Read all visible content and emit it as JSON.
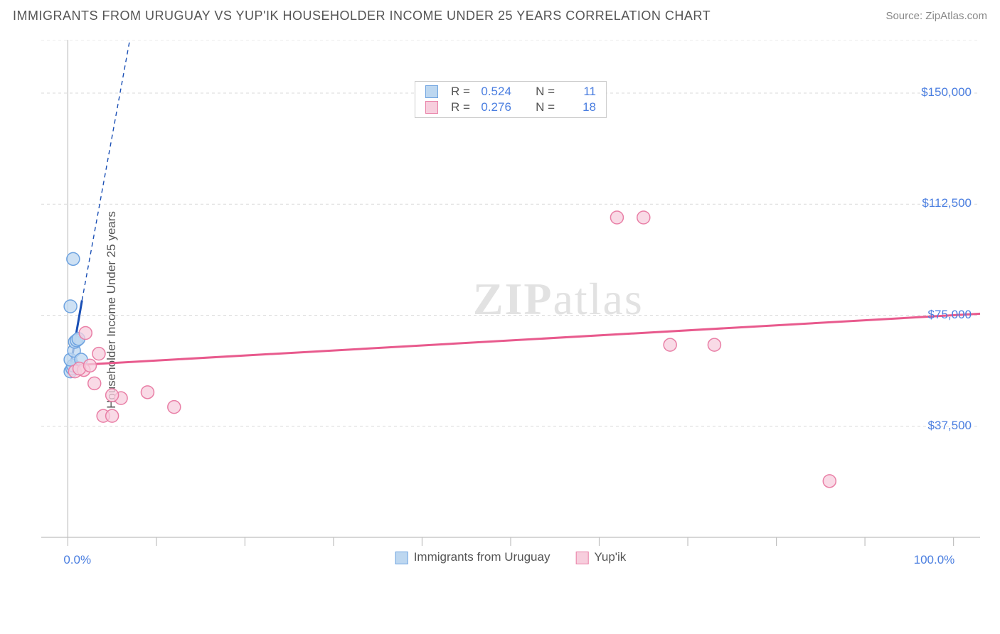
{
  "header": {
    "title": "IMMIGRANTS FROM URUGUAY VS YUP'IK HOUSEHOLDER INCOME UNDER 25 YEARS CORRELATION CHART",
    "source": "Source: ZipAtlas.com"
  },
  "ylabel": "Householder Income Under 25 years",
  "watermark_a": "ZIP",
  "watermark_b": "atlas",
  "chart": {
    "type": "scatter",
    "background_color": "#ffffff",
    "grid_color": "#d9d9d9",
    "axis_color": "#bfbfbf",
    "tick_color": "#bfbfbf",
    "xlim": [
      -3,
      103
    ],
    "ylim": [
      0,
      168000
    ],
    "x_ticks_pct": [
      0,
      10,
      20,
      30,
      40,
      50,
      60,
      70,
      80,
      90,
      100
    ],
    "y_gridlines": [
      37500,
      75000,
      112500,
      150000,
      168000
    ],
    "y_labels": [
      {
        "v": 150000,
        "t": "$150,000"
      },
      {
        "v": 112500,
        "t": "$112,500"
      },
      {
        "v": 75000,
        "t": "$75,000"
      },
      {
        "v": 37500,
        "t": "$37,500"
      }
    ],
    "x_labels": [
      {
        "v": 0,
        "t": "0.0%"
      },
      {
        "v": 100,
        "t": "100.0%"
      }
    ],
    "marker_radius": 9,
    "marker_stroke_width": 1.5,
    "line_width": 3,
    "dash_pattern": "6,5",
    "series": [
      {
        "name": "Immigrants from Uruguay",
        "fill": "#bdd7f0",
        "stroke": "#6ea3e0",
        "line_color": "#1a4fb5",
        "r_value": "0.524",
        "n_value": "11",
        "points": [
          {
            "x": 0.3,
            "y": 56000
          },
          {
            "x": 0.5,
            "y": 57000
          },
          {
            "x": 0.6,
            "y": 58000
          },
          {
            "x": 0.3,
            "y": 60000
          },
          {
            "x": 0.7,
            "y": 63000
          },
          {
            "x": 0.8,
            "y": 66000
          },
          {
            "x": 1.0,
            "y": 66500
          },
          {
            "x": 1.2,
            "y": 67000
          },
          {
            "x": 0.3,
            "y": 78000
          },
          {
            "x": 0.6,
            "y": 94000
          },
          {
            "x": 1.5,
            "y": 60000
          }
        ],
        "trend_solid": {
          "x1": 0.2,
          "y1": 56000,
          "x2": 1.6,
          "y2": 80000
        },
        "trend_dash": {
          "x1": 1.6,
          "y1": 80000,
          "x2": 7.0,
          "y2": 168000
        }
      },
      {
        "name": "Yup'ik",
        "fill": "#f7cedd",
        "stroke": "#e97fa6",
        "line_color": "#e85a8d",
        "r_value": "0.276",
        "n_value": "18",
        "points": [
          {
            "x": 0.8,
            "y": 56000
          },
          {
            "x": 1.8,
            "y": 56500
          },
          {
            "x": 1.3,
            "y": 57000
          },
          {
            "x": 2.5,
            "y": 58000
          },
          {
            "x": 3.5,
            "y": 62000
          },
          {
            "x": 2.0,
            "y": 69000
          },
          {
            "x": 6.0,
            "y": 47000
          },
          {
            "x": 5.0,
            "y": 48000
          },
          {
            "x": 3.0,
            "y": 52000
          },
          {
            "x": 4.0,
            "y": 41000
          },
          {
            "x": 5.0,
            "y": 41000
          },
          {
            "x": 12.0,
            "y": 44000
          },
          {
            "x": 9.0,
            "y": 49000
          },
          {
            "x": 62.0,
            "y": 108000
          },
          {
            "x": 65.0,
            "y": 108000
          },
          {
            "x": 68.0,
            "y": 65000
          },
          {
            "x": 73.0,
            "y": 65000
          },
          {
            "x": 86.0,
            "y": 19000
          }
        ],
        "trend_solid": {
          "x1": 0.0,
          "y1": 58000,
          "x2": 103.0,
          "y2": 75500
        }
      }
    ]
  },
  "bottom_legend": [
    {
      "label": "Immigrants from Uruguay",
      "fill": "#bdd7f0",
      "stroke": "#6ea3e0"
    },
    {
      "label": "Yup'ik",
      "fill": "#f7cedd",
      "stroke": "#e97fa6"
    }
  ],
  "topbox": {
    "r_label": "R =",
    "n_label": "N ="
  }
}
